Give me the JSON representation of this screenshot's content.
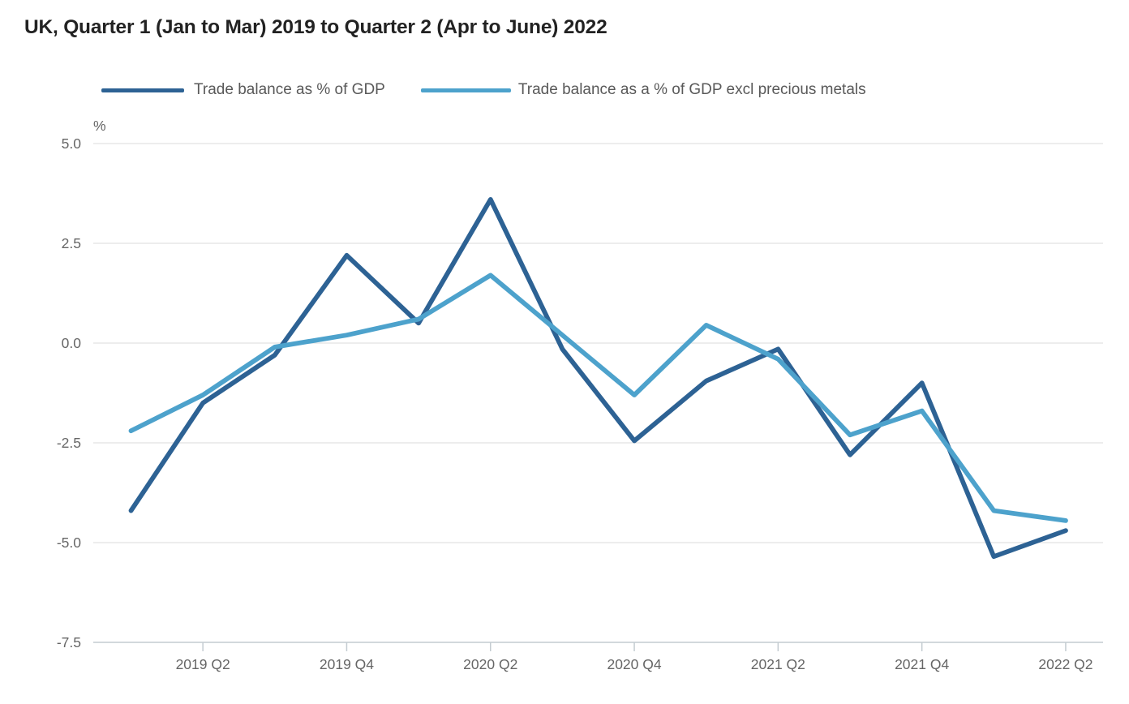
{
  "title": "UK, Quarter 1 (Jan to Mar) 2019 to Quarter 2 (Apr to June) 2022",
  "legend": [
    {
      "label": "Trade balance as % of GDP",
      "color": "#2d6294"
    },
    {
      "label": "Trade balance as a % of GDP excl precious metals",
      "color": "#4da2cc"
    }
  ],
  "colors": {
    "title_text": "#222222",
    "axis_text": "#666666",
    "gridline": "#e2e2e2",
    "axis_line": "#c4ccd1",
    "series_dark": "#2d6294",
    "series_light": "#4da2cc"
  },
  "chart_data": {
    "type": "line",
    "title": "UK, Quarter 1 (Jan to Mar) 2019 to Quarter 2 (Apr to June) 2022",
    "unit_label": "%",
    "xlabel": "",
    "ylabel": "%",
    "ylim": [
      -7.5,
      5.0
    ],
    "ytick_labels": [
      "5.0",
      "2.5",
      "0.0",
      "-2.5",
      "-5.0",
      "-7.5"
    ],
    "yticks": [
      5.0,
      2.5,
      0.0,
      -2.5,
      -5.0,
      -7.5
    ],
    "grid": true,
    "legend_position": "top",
    "categories": [
      "2019 Q1",
      "2019 Q2",
      "2019 Q3",
      "2019 Q4",
      "2020 Q1",
      "2020 Q2",
      "2020 Q3",
      "2020 Q4",
      "2021 Q1",
      "2021 Q2",
      "2021 Q3",
      "2021 Q4",
      "2022 Q1",
      "2022 Q2"
    ],
    "x_tick_labels": [
      "2019 Q2",
      "2019 Q4",
      "2020 Q2",
      "2020 Q4",
      "2021 Q2",
      "2021 Q4",
      "2022 Q2"
    ],
    "x_tick_indices": [
      1,
      3,
      5,
      7,
      9,
      11,
      13
    ],
    "series": [
      {
        "name": "Trade balance as % of GDP",
        "color": "#2d6294",
        "values": [
          -4.2,
          -1.5,
          -0.3,
          2.2,
          0.5,
          3.6,
          -0.15,
          -2.45,
          -0.95,
          -0.15,
          -2.8,
          -1.0,
          -5.35,
          -4.7
        ]
      },
      {
        "name": "Trade balance as a % of GDP excl precious metals",
        "color": "#4da2cc",
        "values": [
          -2.2,
          -1.3,
          -0.1,
          0.2,
          0.6,
          1.7,
          0.2,
          -1.3,
          0.45,
          -0.4,
          -2.3,
          -1.7,
          -4.2,
          -4.45
        ]
      }
    ]
  }
}
